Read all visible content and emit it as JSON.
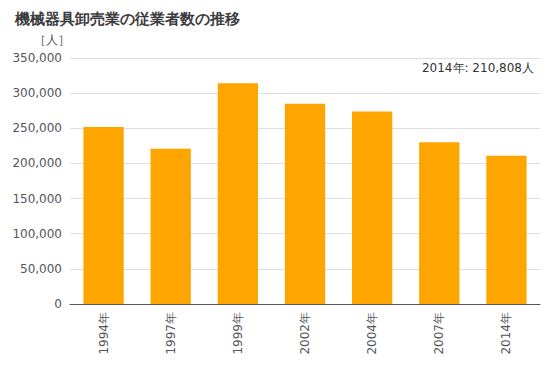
{
  "chart_data": {
    "type": "bar",
    "title": "機械器具卸売業の従業者数の推移",
    "ylabel": "［人］",
    "annotation": "2014年: 210,808人",
    "categories": [
      "1994年",
      "1997年",
      "1999年",
      "2002年",
      "2004年",
      "2007年",
      "2014年"
    ],
    "values": [
      252000,
      221000,
      314000,
      285000,
      274000,
      230000,
      210808
    ],
    "color": "#FFA500",
    "ylim": [
      0,
      350000
    ],
    "yticks": [
      0,
      {
        "value": 50000,
        "label": "50,000"
      },
      {
        "value": 100000,
        "label": "100,000"
      },
      {
        "value": 150000,
        "label": "150,000"
      },
      {
        "value": 200000,
        "label": "200,000"
      },
      {
        "value": 250000,
        "label": "250,000"
      },
      {
        "value": 300000,
        "label": "300,000"
      },
      {
        "value": 350000,
        "label": "350,000"
      }
    ],
    "grid": true
  }
}
